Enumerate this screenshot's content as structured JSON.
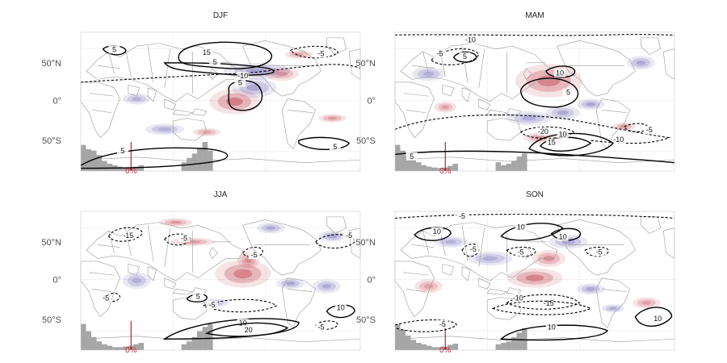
{
  "map": {
    "panels": [
      {
        "id": "djf",
        "title": "DJF",
        "zero_label": "0%",
        "contours": [
          {
            "value": "15",
            "style": "solid"
          },
          {
            "value": "5",
            "style": "solid"
          },
          {
            "value": "5",
            "style": "solid"
          },
          {
            "value": "5",
            "style": "solid"
          },
          {
            "value": "5",
            "style": "solid"
          },
          {
            "value": "5",
            "style": "solid"
          },
          {
            "value": "-10",
            "style": "dashed"
          },
          {
            "value": "-5",
            "style": "dashed"
          }
        ]
      },
      {
        "id": "mam",
        "title": "MAM",
        "zero_label": "0%",
        "contours": [
          {
            "value": "-10",
            "style": "dashed"
          },
          {
            "value": "-5",
            "style": "dashed"
          },
          {
            "value": "5",
            "style": "solid"
          },
          {
            "value": "10",
            "style": "solid"
          },
          {
            "value": "5",
            "style": "solid"
          },
          {
            "value": "-20",
            "style": "dashed"
          },
          {
            "value": "-10",
            "style": "dashed"
          },
          {
            "value": "15",
            "style": "solid"
          },
          {
            "value": "10",
            "style": "solid"
          },
          {
            "value": "-5",
            "style": "dashed"
          },
          {
            "value": "5",
            "style": "solid"
          }
        ]
      },
      {
        "id": "jja",
        "title": "JJA",
        "zero_label": "0%",
        "contours": [
          {
            "value": "-15",
            "style": "dashed"
          },
          {
            "value": "-5",
            "style": "dashed"
          },
          {
            "value": "-5",
            "style": "dashed"
          },
          {
            "value": "5",
            "style": "solid"
          },
          {
            "value": "-5",
            "style": "dashed"
          },
          {
            "value": "-5",
            "style": "dashed"
          },
          {
            "value": "-5",
            "style": "dashed"
          },
          {
            "value": "10",
            "style": "solid"
          },
          {
            "value": "20",
            "style": "solid"
          },
          {
            "value": "10",
            "style": "solid"
          },
          {
            "value": "-5",
            "style": "dashed"
          }
        ]
      },
      {
        "id": "son",
        "title": "SON",
        "zero_label": "0%",
        "contours": [
          {
            "value": "-5",
            "style": "dashed"
          },
          {
            "value": "10",
            "style": "solid"
          },
          {
            "value": "10",
            "style": "solid"
          },
          {
            "value": "10",
            "style": "solid"
          },
          {
            "value": "-5",
            "style": "dashed"
          },
          {
            "value": "-5",
            "style": "dashed"
          },
          {
            "value": "-5",
            "style": "dashed"
          },
          {
            "value": "-15",
            "style": "dashed"
          },
          {
            "value": "-10",
            "style": "dashed"
          },
          {
            "value": "10",
            "style": "solid"
          },
          {
            "value": "-5",
            "style": "dashed"
          },
          {
            "value": "10",
            "style": "solid"
          }
        ]
      }
    ],
    "lat_labels": [
      "50°N",
      "0°",
      "50°S"
    ],
    "colors": {
      "positive": "#b2182b",
      "negative": "#4b3fa0",
      "contour": "#000000",
      "coast": "#9a9a9a",
      "zero_line": "#c0202e",
      "bars": "#a6a6a6"
    }
  }
}
